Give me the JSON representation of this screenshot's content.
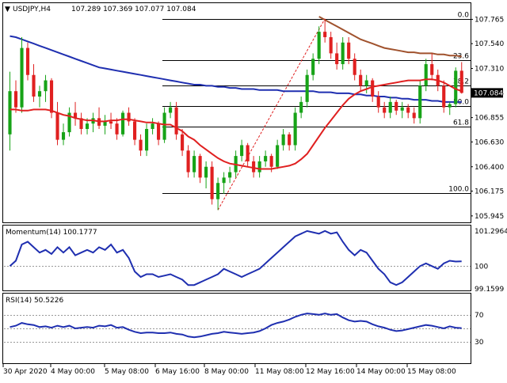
{
  "header": {
    "symbol": "USDJPY,H4",
    "ohlc": "107.289 107.369 107.077 107.084"
  },
  "colors": {
    "bull": "#17a317",
    "bear": "#e02020",
    "ma_fast": "#e02020",
    "ma_mid": "#1f2fb0",
    "ma_slow": "#a0522d",
    "fib": "#000000",
    "trend": "#e02020",
    "momentum": "#1f2fb0",
    "rsi": "#1f2fb0",
    "price_tag_bg": "#000000",
    "price_tag_fg": "#ffffff"
  },
  "chart_data": [
    {
      "type": "candlestick",
      "title": "USDJPY,H4",
      "ylim": [
        105.9,
        107.9
      ],
      "y_ticks": [
        "107.765",
        "107.540",
        "107.310",
        "107.084",
        "106.855",
        "106.630",
        "106.400",
        "106.175",
        "105.945"
      ],
      "current_price": "107.084",
      "x_ticks": [
        "30 Apr 2020",
        "4 May 00:00",
        "5 May 08:00",
        "6 May 16:00",
        "8 May 00:00",
        "11 May 08:00",
        "12 May 16:00",
        "14 May 00:00",
        "15 May 08:00"
      ],
      "fib_levels": [
        {
          "label": "0.0",
          "value": 107.765
        },
        {
          "label": "23.6",
          "value": 107.385
        },
        {
          "label": "38.2",
          "value": 107.15
        },
        {
          "label": "50.0",
          "value": 106.96
        },
        {
          "label": "61.8",
          "value": 106.77
        },
        {
          "label": "100.0",
          "value": 106.155
        }
      ],
      "candles": [
        [
          106.7,
          107.28,
          106.55,
          107.1
        ],
        [
          107.1,
          107.2,
          106.9,
          106.95
        ],
        [
          106.95,
          107.6,
          106.9,
          107.5
        ],
        [
          107.5,
          107.55,
          107.2,
          107.25
        ],
        [
          107.25,
          107.35,
          107.0,
          107.05
        ],
        [
          107.05,
          107.15,
          106.95,
          107.1
        ],
        [
          107.1,
          107.25,
          107.0,
          107.2
        ],
        [
          107.2,
          107.22,
          106.85,
          106.9
        ],
        [
          106.9,
          107.0,
          106.6,
          106.65
        ],
        [
          106.65,
          106.8,
          106.6,
          106.72
        ],
        [
          106.72,
          106.95,
          106.68,
          106.9
        ],
        [
          106.9,
          107.0,
          106.78,
          106.85
        ],
        [
          106.85,
          106.9,
          106.7,
          106.75
        ],
        [
          106.75,
          106.85,
          106.7,
          106.8
        ],
        [
          106.8,
          106.9,
          106.72,
          106.85
        ],
        [
          106.85,
          106.95,
          106.75,
          106.78
        ],
        [
          106.78,
          106.88,
          106.7,
          106.82
        ],
        [
          106.82,
          106.9,
          106.75,
          106.8
        ],
        [
          106.8,
          106.85,
          106.65,
          106.7
        ],
        [
          106.7,
          106.92,
          106.68,
          106.9
        ],
        [
          106.9,
          106.95,
          106.78,
          106.82
        ],
        [
          106.82,
          106.85,
          106.6,
          106.65
        ],
        [
          106.65,
          106.7,
          106.5,
          106.55
        ],
        [
          106.55,
          106.8,
          106.5,
          106.75
        ],
        [
          106.75,
          106.85,
          106.7,
          106.8
        ],
        [
          106.8,
          106.82,
          106.6,
          106.65
        ],
        [
          106.65,
          106.95,
          106.62,
          106.9
        ],
        [
          106.9,
          107.0,
          106.85,
          106.95
        ],
        [
          106.95,
          107.0,
          106.65,
          106.7
        ],
        [
          106.7,
          106.75,
          106.5,
          106.55
        ],
        [
          106.55,
          106.6,
          106.3,
          106.35
        ],
        [
          106.35,
          106.55,
          106.3,
          106.5
        ],
        [
          106.5,
          106.52,
          106.25,
          106.3
        ],
        [
          106.3,
          106.45,
          106.2,
          106.4
        ],
        [
          106.4,
          106.45,
          106.05,
          106.1
        ],
        [
          106.1,
          106.3,
          106.0,
          106.25
        ],
        [
          106.25,
          106.35,
          106.15,
          106.3
        ],
        [
          106.3,
          106.4,
          106.25,
          106.35
        ],
        [
          106.35,
          106.55,
          106.3,
          106.5
        ],
        [
          106.5,
          106.65,
          106.45,
          106.6
        ],
        [
          106.6,
          106.62,
          106.4,
          106.45
        ],
        [
          106.45,
          106.5,
          106.3,
          106.35
        ],
        [
          106.35,
          106.5,
          106.3,
          106.45
        ],
        [
          106.45,
          106.55,
          106.4,
          106.5
        ],
        [
          106.5,
          106.52,
          106.35,
          106.4
        ],
        [
          106.4,
          106.65,
          106.38,
          106.6
        ],
        [
          106.6,
          106.75,
          106.55,
          106.7
        ],
        [
          106.7,
          106.72,
          106.55,
          106.6
        ],
        [
          106.6,
          106.95,
          106.55,
          106.9
        ],
        [
          106.9,
          107.05,
          106.85,
          107.0
        ],
        [
          107.0,
          107.3,
          106.95,
          107.25
        ],
        [
          107.25,
          107.45,
          107.2,
          107.4
        ],
        [
          107.4,
          107.7,
          107.35,
          107.65
        ],
        [
          107.65,
          107.77,
          107.55,
          107.6
        ],
        [
          107.6,
          107.65,
          107.4,
          107.45
        ],
        [
          107.45,
          107.55,
          107.3,
          107.35
        ],
        [
          107.35,
          107.6,
          107.3,
          107.55
        ],
        [
          107.55,
          107.6,
          107.35,
          107.4
        ],
        [
          107.4,
          107.45,
          107.2,
          107.25
        ],
        [
          107.25,
          107.3,
          107.1,
          107.15
        ],
        [
          107.15,
          107.25,
          107.08,
          107.2
        ],
        [
          107.2,
          107.22,
          107.0,
          107.05
        ],
        [
          107.05,
          107.1,
          106.9,
          106.95
        ],
        [
          106.95,
          107.0,
          106.85,
          106.9
        ],
        [
          106.9,
          107.05,
          106.85,
          107.0
        ],
        [
          107.0,
          107.02,
          106.88,
          106.92
        ],
        [
          106.92,
          107.0,
          106.85,
          106.95
        ],
        [
          106.95,
          106.98,
          106.85,
          106.9
        ],
        [
          106.9,
          106.95,
          106.8,
          106.85
        ],
        [
          106.85,
          107.2,
          106.8,
          107.15
        ],
        [
          107.15,
          107.4,
          107.1,
          107.35
        ],
        [
          107.35,
          107.45,
          107.2,
          107.25
        ],
        [
          107.25,
          107.3,
          107.1,
          107.15
        ],
        [
          107.15,
          107.2,
          106.9,
          106.95
        ],
        [
          106.95,
          107.0,
          106.88,
          106.98
        ],
        [
          106.98,
          107.32,
          106.95,
          107.289
        ],
        [
          107.289,
          107.369,
          107.077,
          107.084
        ]
      ],
      "ma_fast": [
        106.93,
        106.93,
        106.92,
        106.92,
        106.93,
        106.93,
        106.93,
        106.92,
        106.9,
        106.88,
        106.87,
        106.85,
        106.84,
        106.83,
        106.83,
        106.82,
        106.82,
        106.83,
        106.83,
        106.84,
        106.84,
        106.83,
        106.82,
        106.81,
        106.81,
        106.8,
        106.79,
        106.79,
        106.76,
        106.73,
        106.68,
        106.65,
        106.6,
        106.56,
        106.52,
        106.48,
        106.45,
        106.43,
        106.42,
        106.41,
        106.4,
        106.39,
        106.38,
        106.38,
        106.38,
        106.39,
        106.4,
        106.41,
        106.43,
        106.47,
        106.52,
        106.6,
        106.68,
        106.76,
        106.83,
        106.9,
        106.97,
        107.03,
        107.07,
        107.1,
        107.12,
        107.14,
        107.15,
        107.16,
        107.17,
        107.18,
        107.19,
        107.2,
        107.2,
        107.2,
        107.21,
        107.21,
        107.2,
        107.18,
        107.15,
        107.12,
        107.1
      ],
      "ma_mid": [
        107.61,
        107.6,
        107.58,
        107.56,
        107.54,
        107.52,
        107.5,
        107.48,
        107.46,
        107.44,
        107.42,
        107.4,
        107.38,
        107.36,
        107.34,
        107.32,
        107.31,
        107.3,
        107.29,
        107.28,
        107.27,
        107.26,
        107.25,
        107.24,
        107.23,
        107.22,
        107.21,
        107.2,
        107.19,
        107.18,
        107.17,
        107.16,
        107.16,
        107.15,
        107.15,
        107.14,
        107.14,
        107.13,
        107.13,
        107.12,
        107.12,
        107.12,
        107.11,
        107.11,
        107.11,
        107.11,
        107.1,
        107.1,
        107.1,
        107.1,
        107.1,
        107.1,
        107.09,
        107.09,
        107.09,
        107.08,
        107.08,
        107.08,
        107.07,
        107.07,
        107.06,
        107.06,
        107.05,
        107.05,
        107.04,
        107.04,
        107.03,
        107.03,
        107.02,
        107.02,
        107.02,
        107.01,
        107.01,
        107.0,
        107.0,
        107.0,
        107.0
      ],
      "ma_slow_start_index": 52,
      "ma_slow": [
        107.79,
        107.76,
        107.73,
        107.7,
        107.67,
        107.64,
        107.61,
        107.58,
        107.56,
        107.54,
        107.52,
        107.5,
        107.49,
        107.48,
        107.47,
        107.46,
        107.46,
        107.45,
        107.45,
        107.45,
        107.44,
        107.44,
        107.43,
        107.43,
        107.42
      ]
    },
    {
      "type": "line",
      "title": "Momentum(14) 100.1777",
      "ylim": [
        99.1599,
        101.2964
      ],
      "y_ticks": [
        "101.2964",
        "100",
        "99.1599"
      ],
      "reference_line": 100,
      "values": [
        100.0,
        100.2,
        100.8,
        100.9,
        100.7,
        100.5,
        100.6,
        100.45,
        100.7,
        100.5,
        100.7,
        100.4,
        100.5,
        100.6,
        100.5,
        100.7,
        100.6,
        100.8,
        100.5,
        100.6,
        100.3,
        99.8,
        99.6,
        99.7,
        99.7,
        99.6,
        99.65,
        99.7,
        99.6,
        99.5,
        99.3,
        99.3,
        99.4,
        99.5,
        99.6,
        99.7,
        99.9,
        99.8,
        99.7,
        99.6,
        99.7,
        99.8,
        99.9,
        100.1,
        100.3,
        100.5,
        100.7,
        100.9,
        101.1,
        101.2,
        101.3,
        101.25,
        101.2,
        101.3,
        101.2,
        101.25,
        100.9,
        100.6,
        100.4,
        100.6,
        100.5,
        100.2,
        99.9,
        99.7,
        99.4,
        99.3,
        99.4,
        99.6,
        99.8,
        100.0,
        100.1,
        100.0,
        99.9,
        100.1,
        100.2,
        100.17,
        100.1777
      ]
    },
    {
      "type": "line",
      "title": "RSI(14) 50.5226",
      "ylim": [
        0,
        100
      ],
      "y_ticks": [
        "70",
        "30"
      ],
      "reference_lines": [
        70,
        50,
        30
      ],
      "values": [
        52,
        54,
        58,
        56,
        55,
        52,
        53,
        51,
        54,
        52,
        54,
        50,
        51,
        52,
        51,
        54,
        53,
        55,
        51,
        52,
        48,
        45,
        43,
        44,
        44,
        43,
        43,
        44,
        42,
        41,
        38,
        37,
        38,
        40,
        42,
        43,
        45,
        44,
        43,
        42,
        43,
        44,
        46,
        50,
        55,
        58,
        60,
        63,
        67,
        70,
        72,
        71,
        70,
        72,
        70,
        71,
        66,
        62,
        60,
        61,
        60,
        56,
        53,
        51,
        48,
        46,
        47,
        49,
        51,
        53,
        55,
        54,
        52,
        50,
        53,
        51,
        50.5226
      ]
    }
  ]
}
